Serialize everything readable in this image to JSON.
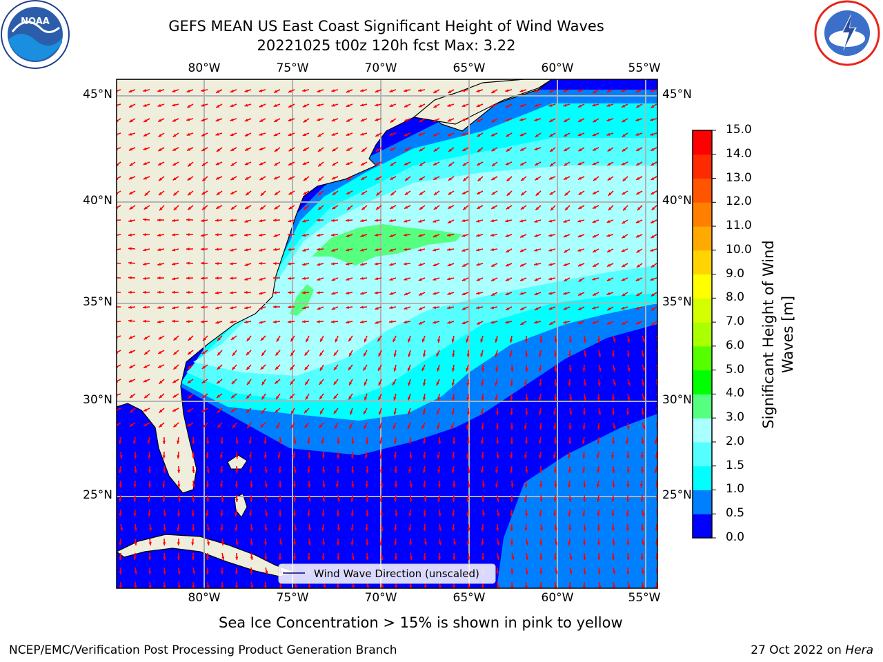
{
  "title_line1": "GEFS MEAN US East Coast Significant Height of Wind Waves",
  "title_line2": "20221025 t00z 120h fcst   Max: 3.22",
  "logos": {
    "left": {
      "name": "NOAA",
      "text": "NOAA"
    },
    "right": {
      "name": "National Weather Service"
    }
  },
  "map": {
    "lon_labels": [
      "80°W",
      "75°W",
      "70°W",
      "65°W",
      "60°W",
      "55°W"
    ],
    "lat_labels": [
      "45°N",
      "40°N",
      "35°N",
      "30°N",
      "25°N"
    ],
    "legend_label": "Wind Wave Direction (unscaled)",
    "max_value": 3.22,
    "colors": {
      "land": "#efeedc",
      "grid": "#b3b3b3",
      "arrows": "#ff0000"
    }
  },
  "colorbar": {
    "label": "Significant Height of Wind Waves [m]",
    "label_line1": "Significant Height of Wind",
    "label_line2": "Waves [m]",
    "ticks": [
      "0.0",
      "0.5",
      "1.0",
      "1.5",
      "2.0",
      "3.0",
      "4.0",
      "5.0",
      "6.0",
      "7.0",
      "8.0",
      "9.0",
      "10.0",
      "11.0",
      "12.0",
      "13.0",
      "14.0",
      "15.0"
    ],
    "colors": [
      "#0000ff",
      "#0080ff",
      "#00ffff",
      "#55ffff",
      "#aaffff",
      "#55ff80",
      "#00ff00",
      "#55ff00",
      "#aaff00",
      "#d4ff00",
      "#ffff00",
      "#ffd400",
      "#ffaa00",
      "#ff8000",
      "#ff5500",
      "#ff2b00",
      "#ff0000"
    ]
  },
  "caption": "Sea Ice Concentration > 15% is shown in pink to yellow",
  "footer_left": "NCEP/EMC/Verification Post Processing Product Generation Branch",
  "footer_right_date": "27 Oct 2022 on",
  "footer_right_machine": "Hera"
}
